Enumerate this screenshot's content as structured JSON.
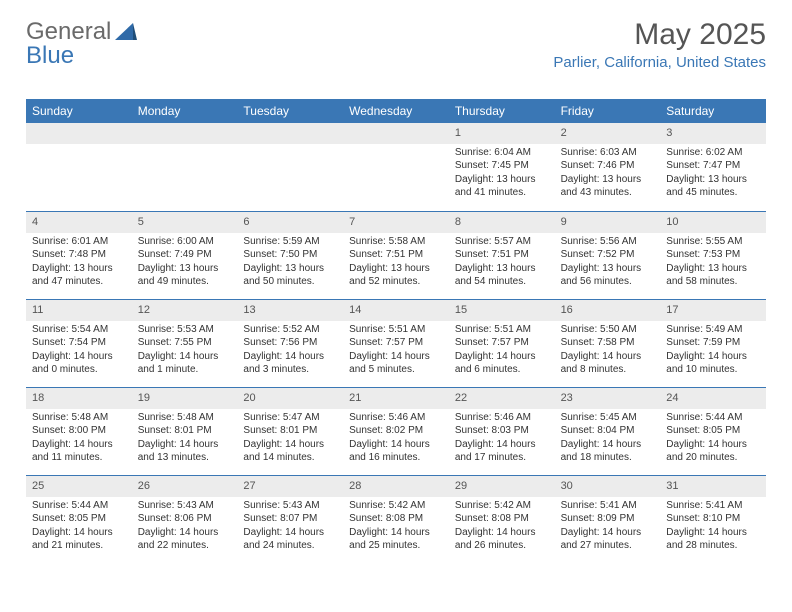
{
  "logo": {
    "text1": "General",
    "text2": "Blue"
  },
  "title": "May 2025",
  "location": "Parlier, California, United States",
  "colors": {
    "header_bg": "#3a77b5",
    "header_text": "#ffffff",
    "daynum_bg": "#ececec",
    "border": "#3a77b5",
    "title_color": "#555555",
    "location_color": "#3a77b5"
  },
  "weekdays": [
    "Sunday",
    "Monday",
    "Tuesday",
    "Wednesday",
    "Thursday",
    "Friday",
    "Saturday"
  ],
  "grid": {
    "first_weekday_index": 4,
    "days_in_month": 31
  },
  "days": {
    "1": {
      "sunrise": "6:04 AM",
      "sunset": "7:45 PM",
      "daylight": "13 hours and 41 minutes."
    },
    "2": {
      "sunrise": "6:03 AM",
      "sunset": "7:46 PM",
      "daylight": "13 hours and 43 minutes."
    },
    "3": {
      "sunrise": "6:02 AM",
      "sunset": "7:47 PM",
      "daylight": "13 hours and 45 minutes."
    },
    "4": {
      "sunrise": "6:01 AM",
      "sunset": "7:48 PM",
      "daylight": "13 hours and 47 minutes."
    },
    "5": {
      "sunrise": "6:00 AM",
      "sunset": "7:49 PM",
      "daylight": "13 hours and 49 minutes."
    },
    "6": {
      "sunrise": "5:59 AM",
      "sunset": "7:50 PM",
      "daylight": "13 hours and 50 minutes."
    },
    "7": {
      "sunrise": "5:58 AM",
      "sunset": "7:51 PM",
      "daylight": "13 hours and 52 minutes."
    },
    "8": {
      "sunrise": "5:57 AM",
      "sunset": "7:51 PM",
      "daylight": "13 hours and 54 minutes."
    },
    "9": {
      "sunrise": "5:56 AM",
      "sunset": "7:52 PM",
      "daylight": "13 hours and 56 minutes."
    },
    "10": {
      "sunrise": "5:55 AM",
      "sunset": "7:53 PM",
      "daylight": "13 hours and 58 minutes."
    },
    "11": {
      "sunrise": "5:54 AM",
      "sunset": "7:54 PM",
      "daylight": "14 hours and 0 minutes."
    },
    "12": {
      "sunrise": "5:53 AM",
      "sunset": "7:55 PM",
      "daylight": "14 hours and 1 minute."
    },
    "13": {
      "sunrise": "5:52 AM",
      "sunset": "7:56 PM",
      "daylight": "14 hours and 3 minutes."
    },
    "14": {
      "sunrise": "5:51 AM",
      "sunset": "7:57 PM",
      "daylight": "14 hours and 5 minutes."
    },
    "15": {
      "sunrise": "5:51 AM",
      "sunset": "7:57 PM",
      "daylight": "14 hours and 6 minutes."
    },
    "16": {
      "sunrise": "5:50 AM",
      "sunset": "7:58 PM",
      "daylight": "14 hours and 8 minutes."
    },
    "17": {
      "sunrise": "5:49 AM",
      "sunset": "7:59 PM",
      "daylight": "14 hours and 10 minutes."
    },
    "18": {
      "sunrise": "5:48 AM",
      "sunset": "8:00 PM",
      "daylight": "14 hours and 11 minutes."
    },
    "19": {
      "sunrise": "5:48 AM",
      "sunset": "8:01 PM",
      "daylight": "14 hours and 13 minutes."
    },
    "20": {
      "sunrise": "5:47 AM",
      "sunset": "8:01 PM",
      "daylight": "14 hours and 14 minutes."
    },
    "21": {
      "sunrise": "5:46 AM",
      "sunset": "8:02 PM",
      "daylight": "14 hours and 16 minutes."
    },
    "22": {
      "sunrise": "5:46 AM",
      "sunset": "8:03 PM",
      "daylight": "14 hours and 17 minutes."
    },
    "23": {
      "sunrise": "5:45 AM",
      "sunset": "8:04 PM",
      "daylight": "14 hours and 18 minutes."
    },
    "24": {
      "sunrise": "5:44 AM",
      "sunset": "8:05 PM",
      "daylight": "14 hours and 20 minutes."
    },
    "25": {
      "sunrise": "5:44 AM",
      "sunset": "8:05 PM",
      "daylight": "14 hours and 21 minutes."
    },
    "26": {
      "sunrise": "5:43 AM",
      "sunset": "8:06 PM",
      "daylight": "14 hours and 22 minutes."
    },
    "27": {
      "sunrise": "5:43 AM",
      "sunset": "8:07 PM",
      "daylight": "14 hours and 24 minutes."
    },
    "28": {
      "sunrise": "5:42 AM",
      "sunset": "8:08 PM",
      "daylight": "14 hours and 25 minutes."
    },
    "29": {
      "sunrise": "5:42 AM",
      "sunset": "8:08 PM",
      "daylight": "14 hours and 26 minutes."
    },
    "30": {
      "sunrise": "5:41 AM",
      "sunset": "8:09 PM",
      "daylight": "14 hours and 27 minutes."
    },
    "31": {
      "sunrise": "5:41 AM",
      "sunset": "8:10 PM",
      "daylight": "14 hours and 28 minutes."
    }
  },
  "labels": {
    "sunrise_prefix": "Sunrise: ",
    "sunset_prefix": "Sunset: ",
    "daylight_prefix": "Daylight: "
  }
}
